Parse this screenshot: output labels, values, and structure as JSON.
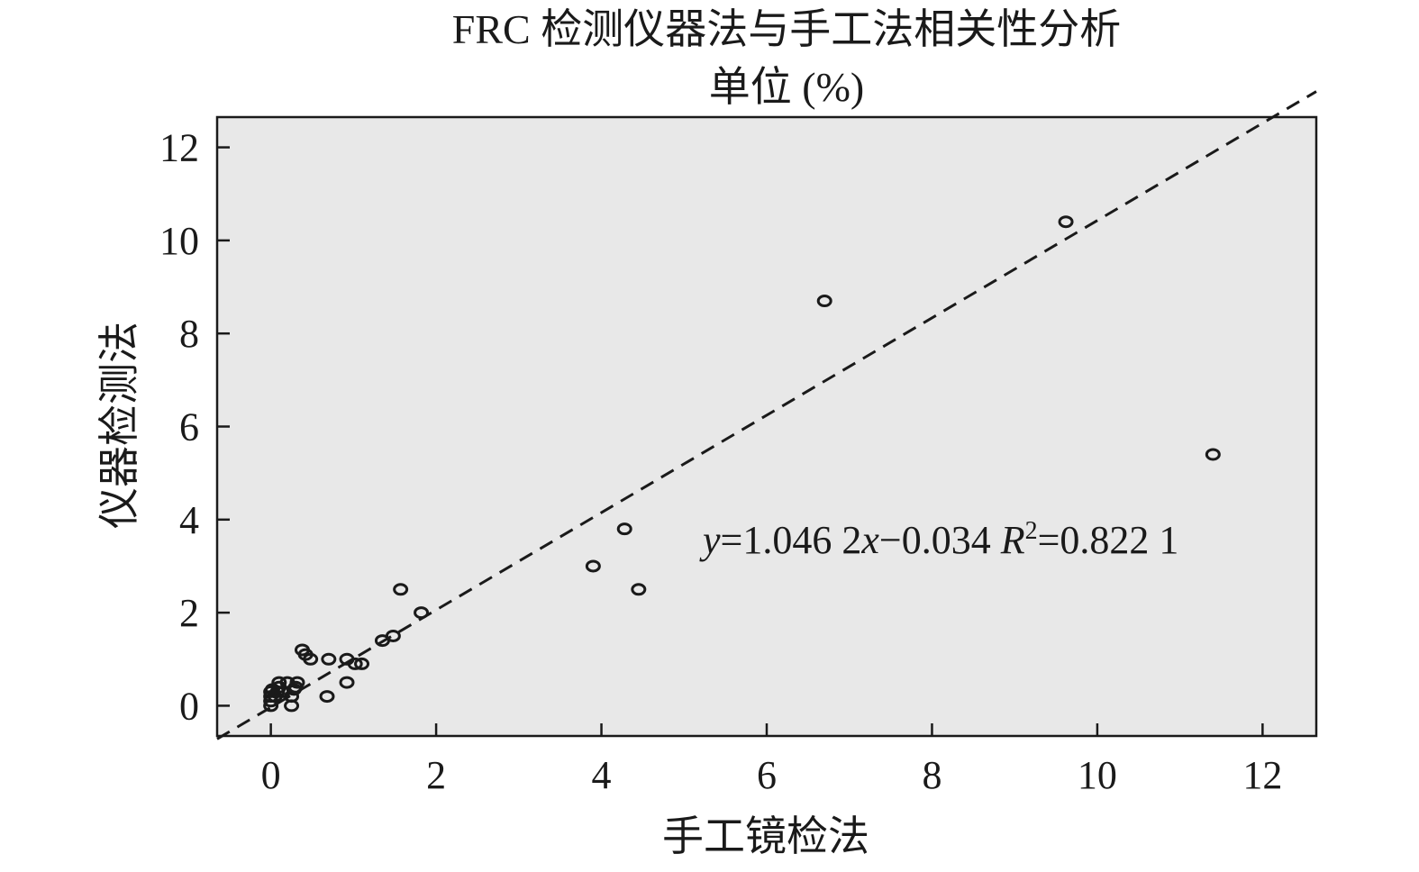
{
  "chart_data": {
    "type": "scatter",
    "title": "FRC 检测仪器法与手工法相关性分析",
    "subtitle": "单位 (%)",
    "xlabel": "手工镜检法",
    "ylabel": "仪器检测法",
    "xlim": [
      -0.65,
      12.65
    ],
    "ylim": [
      -0.65,
      12.65
    ],
    "xticks": [
      "0",
      "2",
      "4",
      "6",
      "8",
      "10",
      "12"
    ],
    "yticks": [
      "0",
      "2",
      "4",
      "6",
      "8",
      "10",
      "12"
    ],
    "grid": false,
    "colors": {
      "plot_background": "#e8e8e8",
      "ink": "#1a1a1a"
    },
    "series": [
      {
        "points": [
          [
            0.0,
            0.0
          ],
          [
            0.0,
            0.1
          ],
          [
            0.0,
            0.2
          ],
          [
            0.0,
            0.3
          ],
          [
            0.02,
            0.35
          ],
          [
            0.05,
            0.2
          ],
          [
            0.08,
            0.3
          ],
          [
            0.1,
            0.4
          ],
          [
            0.1,
            0.5
          ],
          [
            0.15,
            0.3
          ],
          [
            0.2,
            0.5
          ],
          [
            0.25,
            0.0
          ],
          [
            0.25,
            0.2
          ],
          [
            0.28,
            0.35
          ],
          [
            0.3,
            0.4
          ],
          [
            0.32,
            0.5
          ],
          [
            0.38,
            1.2
          ],
          [
            0.42,
            1.1
          ],
          [
            0.48,
            1.0
          ],
          [
            0.68,
            0.2
          ],
          [
            0.7,
            1.0
          ],
          [
            0.92,
            0.5
          ],
          [
            0.92,
            1.0
          ],
          [
            1.02,
            0.9
          ],
          [
            1.1,
            0.9
          ],
          [
            1.35,
            1.4
          ],
          [
            1.48,
            1.5
          ],
          [
            1.57,
            2.5
          ],
          [
            1.82,
            2.0
          ],
          [
            3.9,
            3.0
          ],
          [
            4.28,
            3.8
          ],
          [
            4.45,
            2.5
          ],
          [
            6.7,
            8.7
          ],
          [
            9.62,
            10.4
          ],
          [
            11.4,
            5.4
          ]
        ]
      }
    ],
    "fit_line": {
      "slope": 1.0462,
      "intercept": -0.034,
      "style": "dashed"
    },
    "equation": {
      "y": "y",
      "eq1": "=1.046 2",
      "x": "x",
      "eq2": "−0.034 ",
      "R": "R",
      "sup": "2",
      "eq3": "=0.822 1"
    }
  }
}
